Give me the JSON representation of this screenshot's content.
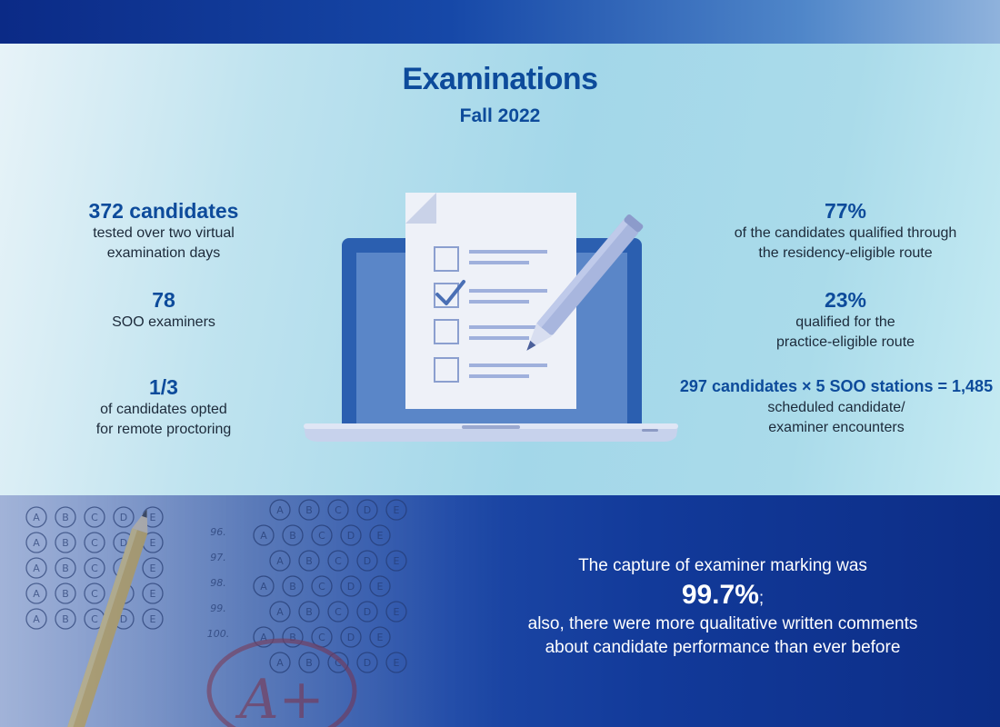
{
  "header": {
    "title": "Examinations",
    "subtitle": "Fall 2022"
  },
  "left_stats": [
    {
      "value": "372 candidates",
      "lines": [
        "tested over two virtual",
        "examination days"
      ]
    },
    {
      "value": "78",
      "lines": [
        "SOO examiners"
      ]
    },
    {
      "value": "1/3",
      "lines": [
        "of candidates opted",
        "for remote proctoring"
      ]
    }
  ],
  "right_stats": [
    {
      "value": "77%",
      "lines": [
        "of the candidates qualified through",
        "the residency-eligible route"
      ]
    },
    {
      "value": "23%",
      "lines": [
        "qualified for the",
        "practice-eligible route"
      ]
    },
    {
      "value": "297 candidates × 5 SOO stations = 1,485",
      "lines": [
        "scheduled candidate/",
        "examiner encounters"
      ]
    }
  ],
  "bottom": {
    "line1": "The capture of examiner marking was",
    "percent": "99.7%",
    "line2": "also, there were more qualitative written comments",
    "line3": "about candidate performance than ever before"
  },
  "bubble_sheet": {
    "row_numbers": [
      "96.",
      "97.",
      "98.",
      "99.",
      "100."
    ],
    "choices": [
      "A",
      "B",
      "C",
      "D",
      "E"
    ],
    "grade": "A+"
  },
  "colors": {
    "accent": "#0d4b9b",
    "laptop": "#2b5fb0",
    "screen": "#5a86c8",
    "paper": "#eef1f8",
    "pencil": "#a8b6de"
  },
  "icons": [
    "laptop-icon",
    "checklist-icon",
    "pencil-icon",
    "bubble-sheet-image"
  ]
}
